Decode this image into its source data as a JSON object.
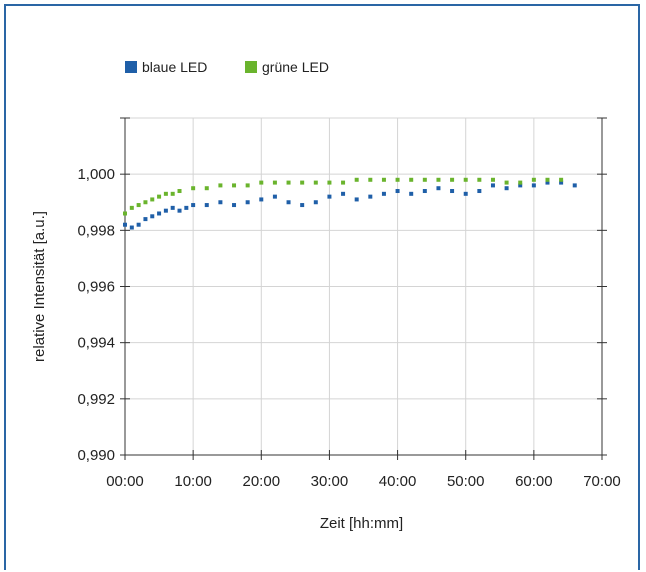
{
  "chart_data": {
    "type": "scatter",
    "title": "",
    "xlabel": "Zeit [hh:mm]",
    "ylabel": "relative Intensität [a.u.]",
    "xlim": [
      0,
      70
    ],
    "ylim": [
      0.99,
      1.002
    ],
    "x_ticks": [
      "00:00",
      "10:00",
      "20:00",
      "30:00",
      "40:00",
      "50:00",
      "60:00",
      "70:00"
    ],
    "x_tick_values": [
      0,
      10,
      20,
      30,
      40,
      50,
      60,
      70
    ],
    "y_ticks": [
      "0,990",
      "0,992",
      "0,994",
      "0,996",
      "0,998",
      "1,000"
    ],
    "y_tick_values": [
      0.99,
      0.992,
      0.994,
      0.996,
      0.998,
      1.0
    ],
    "grid": true,
    "legend_position": "top-left",
    "series": [
      {
        "name": "blaue LED",
        "color": "#1f5fa8",
        "x": [
          0,
          1,
          2,
          3,
          4,
          5,
          6,
          7,
          8,
          9,
          10,
          12,
          14,
          16,
          18,
          20,
          22,
          24,
          26,
          28,
          30,
          32,
          34,
          36,
          38,
          40,
          42,
          44,
          46,
          48,
          50,
          52,
          54,
          56,
          58,
          60,
          62,
          64,
          66
        ],
        "y": [
          0.9982,
          0.9981,
          0.9982,
          0.9984,
          0.9985,
          0.9986,
          0.9987,
          0.9988,
          0.9987,
          0.9988,
          0.9989,
          0.9989,
          0.999,
          0.9989,
          0.999,
          0.9991,
          0.9992,
          0.999,
          0.9989,
          0.999,
          0.9992,
          0.9993,
          0.9991,
          0.9992,
          0.9993,
          0.9994,
          0.9993,
          0.9994,
          0.9995,
          0.9994,
          0.9993,
          0.9994,
          0.9996,
          0.9995,
          0.9996,
          0.9996,
          0.9997,
          0.9997,
          0.9996
        ]
      },
      {
        "name": "grüne LED",
        "color": "#6ab42d",
        "x": [
          0,
          1,
          2,
          3,
          4,
          5,
          6,
          7,
          8,
          10,
          12,
          14,
          16,
          18,
          20,
          22,
          24,
          26,
          28,
          30,
          32,
          34,
          36,
          38,
          40,
          42,
          44,
          46,
          48,
          50,
          52,
          54,
          56,
          58,
          60,
          62,
          64
        ],
        "y": [
          0.9986,
          0.9988,
          0.9989,
          0.999,
          0.9991,
          0.9992,
          0.9993,
          0.9993,
          0.9994,
          0.9995,
          0.9995,
          0.9996,
          0.9996,
          0.9996,
          0.9997,
          0.9997,
          0.9997,
          0.9997,
          0.9997,
          0.9997,
          0.9997,
          0.9998,
          0.9998,
          0.9998,
          0.9998,
          0.9998,
          0.9998,
          0.9998,
          0.9998,
          0.9998,
          0.9998,
          0.9998,
          0.9997,
          0.9997,
          0.9998,
          0.9998,
          0.9998
        ]
      }
    ]
  }
}
